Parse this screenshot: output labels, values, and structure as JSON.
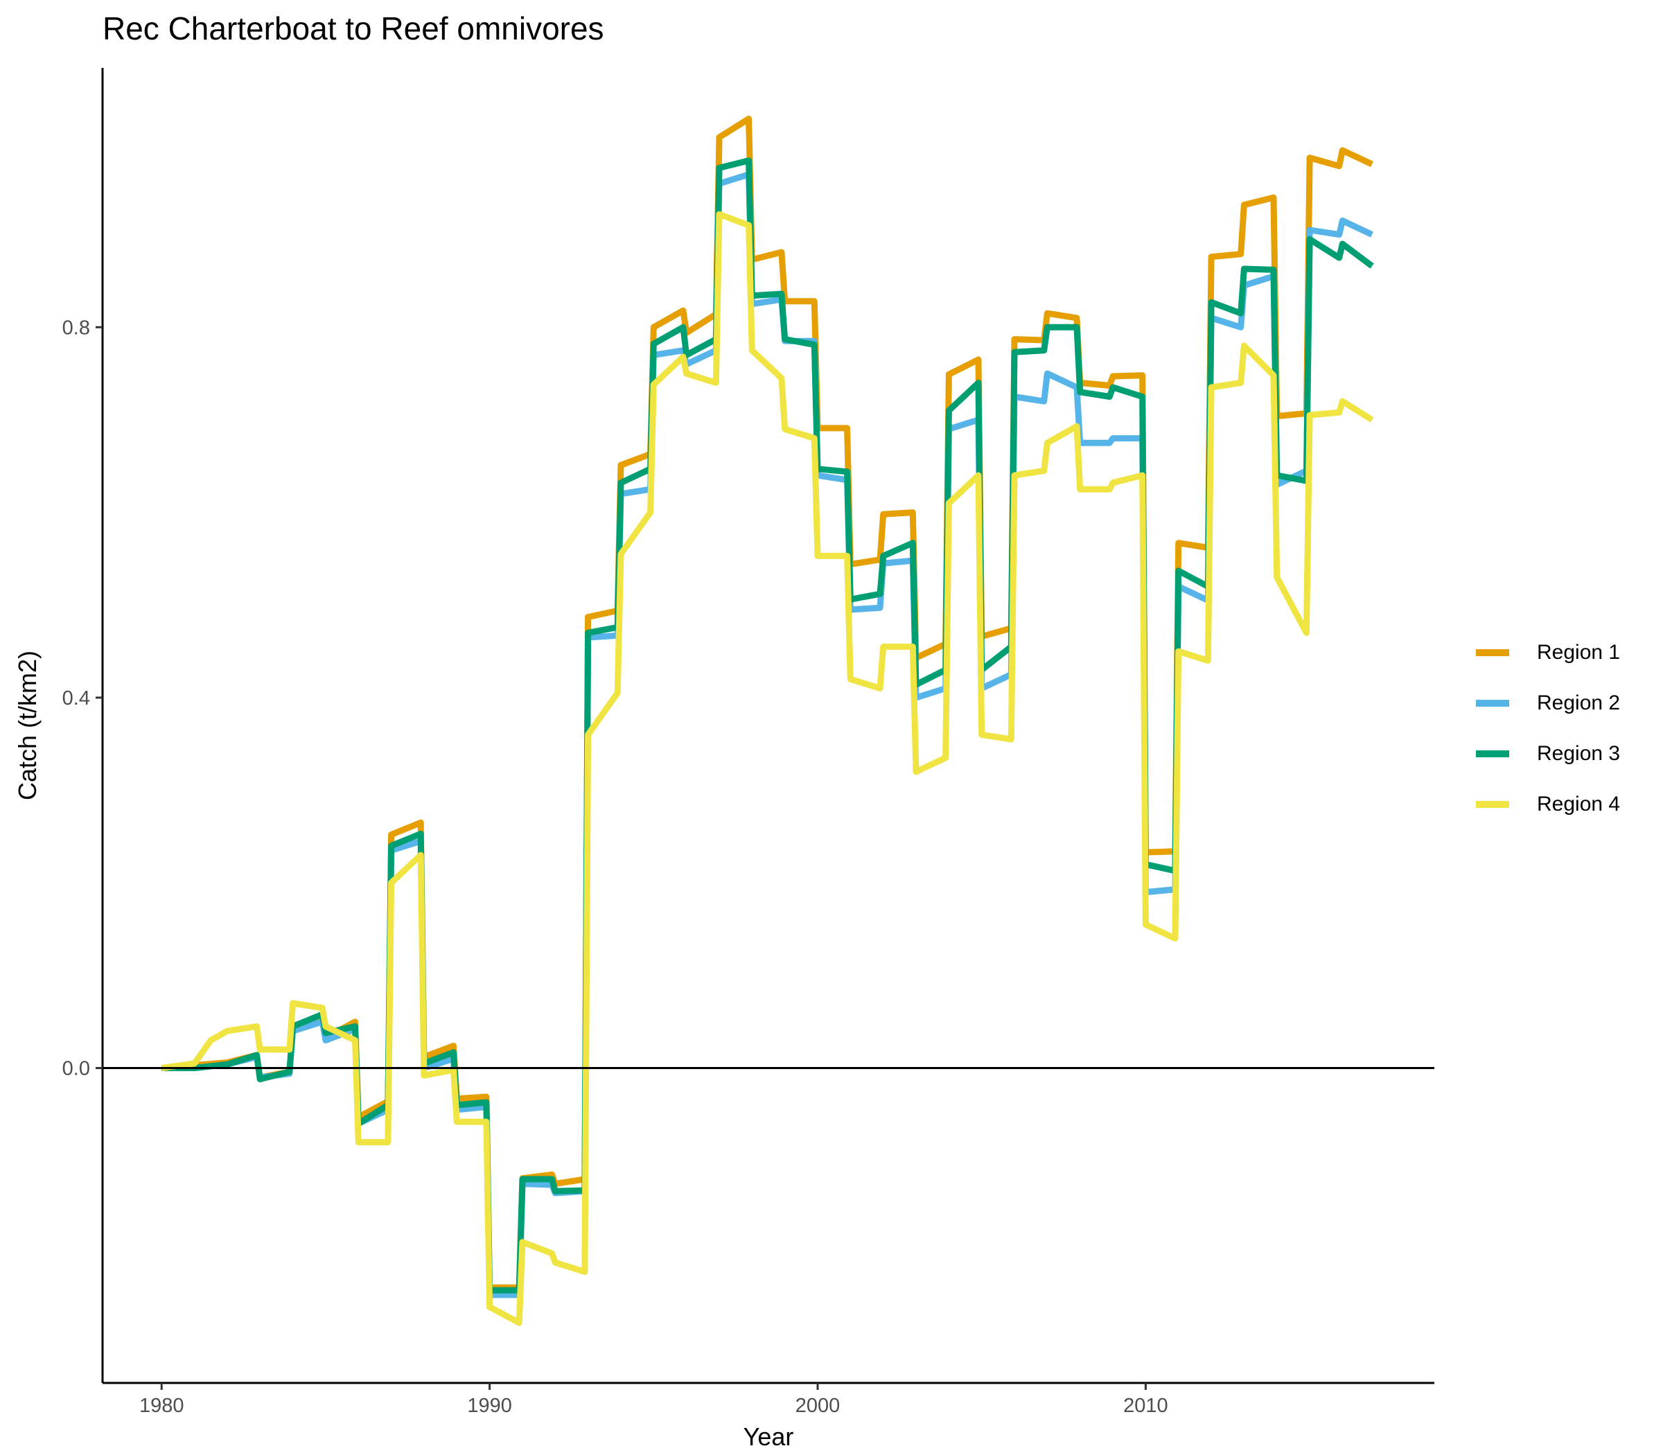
{
  "chart_data": {
    "type": "line",
    "title": "Rec Charterboat to Reef omnivores",
    "xlabel": "Year",
    "ylabel": "Catch (t/km2)",
    "xlim": [
      1978.2,
      2018.8
    ],
    "ylim": [
      -0.34,
      1.08
    ],
    "x_ticks": [
      1980,
      1990,
      2000,
      2010
    ],
    "x_tick_labels": [
      "1980",
      "1990",
      "2000",
      "2010"
    ],
    "y_ticks": [
      0.0,
      0.4,
      0.8
    ],
    "y_tick_labels": [
      "0.0",
      "0.4",
      "0.8"
    ],
    "zero_line": true,
    "grid": false,
    "legend_position": "right",
    "series": [
      {
        "name": "Region 1",
        "color": "#E69F00",
        "points": [
          [
            1980.0,
            0.0
          ],
          [
            1981.0,
            0.003
          ],
          [
            1982.0,
            0.006
          ],
          [
            1982.9,
            0.014
          ],
          [
            1983.0,
            -0.01
          ],
          [
            1983.9,
            -0.004
          ],
          [
            1984.0,
            0.043
          ],
          [
            1984.9,
            0.056
          ],
          [
            1985.0,
            0.033
          ],
          [
            1985.9,
            0.05
          ],
          [
            1986.0,
            -0.053
          ],
          [
            1986.9,
            -0.036
          ],
          [
            1987.0,
            0.252
          ],
          [
            1987.9,
            0.265
          ],
          [
            1988.0,
            0.012
          ],
          [
            1988.9,
            0.024
          ],
          [
            1989.0,
            -0.033
          ],
          [
            1989.9,
            -0.031
          ],
          [
            1990.0,
            -0.237
          ],
          [
            1990.9,
            -0.237
          ],
          [
            1991.0,
            -0.119
          ],
          [
            1991.9,
            -0.115
          ],
          [
            1992.0,
            -0.125
          ],
          [
            1992.9,
            -0.12
          ],
          [
            1993.0,
            0.487
          ],
          [
            1993.9,
            0.494
          ],
          [
            1994.0,
            0.651
          ],
          [
            1994.9,
            0.663
          ],
          [
            1995.0,
            0.8
          ],
          [
            1995.9,
            0.818
          ],
          [
            1996.0,
            0.794
          ],
          [
            1996.9,
            0.814
          ],
          [
            1997.0,
            1.005
          ],
          [
            1997.9,
            1.025
          ],
          [
            1998.0,
            0.873
          ],
          [
            1998.9,
            0.881
          ],
          [
            1999.0,
            0.828
          ],
          [
            1999.9,
            0.828
          ],
          [
            2000.0,
            0.691
          ],
          [
            2000.9,
            0.691
          ],
          [
            2001.0,
            0.544
          ],
          [
            2001.9,
            0.549
          ],
          [
            2002.0,
            0.598
          ],
          [
            2002.9,
            0.6
          ],
          [
            2003.0,
            0.443
          ],
          [
            2003.9,
            0.458
          ],
          [
            2004.0,
            0.749
          ],
          [
            2004.9,
            0.765
          ],
          [
            2005.0,
            0.466
          ],
          [
            2005.9,
            0.475
          ],
          [
            2006.0,
            0.787
          ],
          [
            2006.9,
            0.786
          ],
          [
            2007.0,
            0.815
          ],
          [
            2007.9,
            0.81
          ],
          [
            2008.0,
            0.74
          ],
          [
            2008.9,
            0.737
          ],
          [
            2009.0,
            0.747
          ],
          [
            2009.9,
            0.748
          ],
          [
            2010.0,
            0.233
          ],
          [
            2010.9,
            0.234
          ],
          [
            2011.0,
            0.567
          ],
          [
            2011.9,
            0.562
          ],
          [
            2012.0,
            0.876
          ],
          [
            2012.9,
            0.879
          ],
          [
            2013.0,
            0.932
          ],
          [
            2013.9,
            0.94
          ],
          [
            2014.0,
            0.704
          ],
          [
            2014.9,
            0.707
          ],
          [
            2015.0,
            0.983
          ],
          [
            2015.9,
            0.974
          ],
          [
            2016.0,
            0.991
          ],
          [
            2016.9,
            0.976
          ]
        ]
      },
      {
        "name": "Region 2",
        "color": "#56B4E9",
        "points": [
          [
            1980.0,
            0.0
          ],
          [
            1981.0,
            0.0
          ],
          [
            1982.0,
            0.004
          ],
          [
            1982.9,
            0.012
          ],
          [
            1983.0,
            -0.01
          ],
          [
            1983.9,
            -0.006
          ],
          [
            1984.0,
            0.04
          ],
          [
            1984.9,
            0.05
          ],
          [
            1985.0,
            0.03
          ],
          [
            1985.9,
            0.042
          ],
          [
            1986.0,
            -0.06
          ],
          [
            1986.9,
            -0.045
          ],
          [
            1987.0,
            0.235
          ],
          [
            1987.9,
            0.245
          ],
          [
            1988.0,
            0.0
          ],
          [
            1988.9,
            0.01
          ],
          [
            1989.0,
            -0.045
          ],
          [
            1989.9,
            -0.042
          ],
          [
            1990.0,
            -0.245
          ],
          [
            1990.9,
            -0.245
          ],
          [
            1991.0,
            -0.125
          ],
          [
            1991.9,
            -0.126
          ],
          [
            1992.0,
            -0.135
          ],
          [
            1992.9,
            -0.133
          ],
          [
            1993.0,
            0.465
          ],
          [
            1993.9,
            0.467
          ],
          [
            1994.0,
            0.62
          ],
          [
            1994.9,
            0.625
          ],
          [
            1995.0,
            0.77
          ],
          [
            1995.9,
            0.775
          ],
          [
            1996.0,
            0.76
          ],
          [
            1996.9,
            0.775
          ],
          [
            1997.0,
            0.955
          ],
          [
            1997.9,
            0.965
          ],
          [
            1998.0,
            0.825
          ],
          [
            1998.9,
            0.83
          ],
          [
            1999.0,
            0.785
          ],
          [
            1999.9,
            0.785
          ],
          [
            2000.0,
            0.64
          ],
          [
            2000.9,
            0.635
          ],
          [
            2001.0,
            0.495
          ],
          [
            2001.9,
            0.497
          ],
          [
            2002.0,
            0.545
          ],
          [
            2002.9,
            0.548
          ],
          [
            2003.0,
            0.4
          ],
          [
            2003.9,
            0.41
          ],
          [
            2004.0,
            0.69
          ],
          [
            2004.9,
            0.7
          ],
          [
            2005.0,
            0.41
          ],
          [
            2005.9,
            0.425
          ],
          [
            2006.0,
            0.725
          ],
          [
            2006.9,
            0.72
          ],
          [
            2007.0,
            0.75
          ],
          [
            2007.9,
            0.735
          ],
          [
            2008.0,
            0.675
          ],
          [
            2008.9,
            0.675
          ],
          [
            2009.0,
            0.68
          ],
          [
            2009.9,
            0.68
          ],
          [
            2010.0,
            0.19
          ],
          [
            2010.9,
            0.193
          ],
          [
            2011.0,
            0.52
          ],
          [
            2011.9,
            0.505
          ],
          [
            2012.0,
            0.81
          ],
          [
            2012.9,
            0.8
          ],
          [
            2013.0,
            0.845
          ],
          [
            2013.9,
            0.855
          ],
          [
            2014.0,
            0.63
          ],
          [
            2014.9,
            0.645
          ],
          [
            2015.0,
            0.905
          ],
          [
            2015.9,
            0.9
          ],
          [
            2016.0,
            0.915
          ],
          [
            2016.9,
            0.9
          ]
        ]
      },
      {
        "name": "Region 3",
        "color": "#009E73",
        "points": [
          [
            1980.0,
            0.0
          ],
          [
            1981.0,
            0.0
          ],
          [
            1982.0,
            0.004
          ],
          [
            1982.9,
            0.014
          ],
          [
            1983.0,
            -0.012
          ],
          [
            1983.9,
            -0.004
          ],
          [
            1984.0,
            0.045
          ],
          [
            1984.9,
            0.058
          ],
          [
            1985.0,
            0.038
          ],
          [
            1985.9,
            0.045
          ],
          [
            1986.0,
            -0.06
          ],
          [
            1986.9,
            -0.04
          ],
          [
            1987.0,
            0.24
          ],
          [
            1987.9,
            0.253
          ],
          [
            1988.0,
            0.005
          ],
          [
            1988.9,
            0.017
          ],
          [
            1989.0,
            -0.04
          ],
          [
            1989.9,
            -0.037
          ],
          [
            1990.0,
            -0.24
          ],
          [
            1990.9,
            -0.24
          ],
          [
            1991.0,
            -0.12
          ],
          [
            1991.9,
            -0.12
          ],
          [
            1992.0,
            -0.133
          ],
          [
            1992.9,
            -0.132
          ],
          [
            1993.0,
            0.47
          ],
          [
            1993.9,
            0.476
          ],
          [
            1994.0,
            0.632
          ],
          [
            1994.9,
            0.647
          ],
          [
            1995.0,
            0.782
          ],
          [
            1995.9,
            0.8
          ],
          [
            1996.0,
            0.77
          ],
          [
            1996.9,
            0.787
          ],
          [
            1997.0,
            0.972
          ],
          [
            1997.9,
            0.98
          ],
          [
            1998.0,
            0.834
          ],
          [
            1998.9,
            0.836
          ],
          [
            1999.0,
            0.787
          ],
          [
            1999.9,
            0.781
          ],
          [
            2000.0,
            0.647
          ],
          [
            2000.9,
            0.644
          ],
          [
            2001.0,
            0.506
          ],
          [
            2001.9,
            0.512
          ],
          [
            2002.0,
            0.553
          ],
          [
            2002.9,
            0.567
          ],
          [
            2003.0,
            0.414
          ],
          [
            2003.9,
            0.43
          ],
          [
            2004.0,
            0.71
          ],
          [
            2004.9,
            0.74
          ],
          [
            2005.0,
            0.43
          ],
          [
            2005.9,
            0.455
          ],
          [
            2006.0,
            0.773
          ],
          [
            2006.9,
            0.775
          ],
          [
            2007.0,
            0.8
          ],
          [
            2007.9,
            0.8
          ],
          [
            2008.0,
            0.73
          ],
          [
            2008.9,
            0.725
          ],
          [
            2009.0,
            0.735
          ],
          [
            2009.9,
            0.725
          ],
          [
            2010.0,
            0.22
          ],
          [
            2010.9,
            0.213
          ],
          [
            2011.0,
            0.537
          ],
          [
            2011.9,
            0.52
          ],
          [
            2012.0,
            0.827
          ],
          [
            2012.9,
            0.815
          ],
          [
            2013.0,
            0.863
          ],
          [
            2013.9,
            0.862
          ],
          [
            2014.0,
            0.64
          ],
          [
            2014.9,
            0.634
          ],
          [
            2015.0,
            0.895
          ],
          [
            2015.9,
            0.875
          ],
          [
            2016.0,
            0.89
          ],
          [
            2016.9,
            0.866
          ]
        ]
      },
      {
        "name": "Region 4",
        "color": "#F0E442",
        "points": [
          [
            1980.0,
            0.0
          ],
          [
            1981.0,
            0.005
          ],
          [
            1981.5,
            0.03
          ],
          [
            1982.0,
            0.04
          ],
          [
            1982.9,
            0.045
          ],
          [
            1983.0,
            0.02
          ],
          [
            1983.9,
            0.02
          ],
          [
            1984.0,
            0.07
          ],
          [
            1984.9,
            0.065
          ],
          [
            1985.0,
            0.045
          ],
          [
            1985.9,
            0.03
          ],
          [
            1986.0,
            -0.08
          ],
          [
            1986.9,
            -0.08
          ],
          [
            1987.0,
            0.2
          ],
          [
            1987.9,
            0.23
          ],
          [
            1988.0,
            -0.008
          ],
          [
            1988.9,
            -0.002
          ],
          [
            1989.0,
            -0.058
          ],
          [
            1989.9,
            -0.058
          ],
          [
            1990.0,
            -0.258
          ],
          [
            1990.9,
            -0.275
          ],
          [
            1991.0,
            -0.188
          ],
          [
            1991.9,
            -0.2
          ],
          [
            1992.0,
            -0.21
          ],
          [
            1992.9,
            -0.22
          ],
          [
            1993.0,
            0.36
          ],
          [
            1993.9,
            0.405
          ],
          [
            1994.0,
            0.555
          ],
          [
            1994.9,
            0.6
          ],
          [
            1995.0,
            0.738
          ],
          [
            1995.9,
            0.768
          ],
          [
            1996.0,
            0.75
          ],
          [
            1996.9,
            0.74
          ],
          [
            1997.0,
            0.922
          ],
          [
            1997.9,
            0.91
          ],
          [
            1998.0,
            0.775
          ],
          [
            1998.9,
            0.745
          ],
          [
            1999.0,
            0.69
          ],
          [
            1999.9,
            0.68
          ],
          [
            2000.0,
            0.553
          ],
          [
            2000.9,
            0.553
          ],
          [
            2001.0,
            0.42
          ],
          [
            2001.9,
            0.41
          ],
          [
            2002.0,
            0.455
          ],
          [
            2002.9,
            0.455
          ],
          [
            2003.0,
            0.32
          ],
          [
            2003.9,
            0.335
          ],
          [
            2004.0,
            0.61
          ],
          [
            2004.9,
            0.64
          ],
          [
            2005.0,
            0.36
          ],
          [
            2005.9,
            0.355
          ],
          [
            2006.0,
            0.64
          ],
          [
            2006.9,
            0.645
          ],
          [
            2007.0,
            0.675
          ],
          [
            2007.9,
            0.693
          ],
          [
            2008.0,
            0.625
          ],
          [
            2008.9,
            0.625
          ],
          [
            2009.0,
            0.632
          ],
          [
            2009.9,
            0.64
          ],
          [
            2010.0,
            0.155
          ],
          [
            2010.9,
            0.14
          ],
          [
            2011.0,
            0.45
          ],
          [
            2011.9,
            0.44
          ],
          [
            2012.0,
            0.735
          ],
          [
            2012.9,
            0.74
          ],
          [
            2013.0,
            0.78
          ],
          [
            2013.9,
            0.748
          ],
          [
            2014.0,
            0.53
          ],
          [
            2014.9,
            0.47
          ],
          [
            2015.0,
            0.705
          ],
          [
            2015.9,
            0.708
          ],
          [
            2016.0,
            0.72
          ],
          [
            2016.9,
            0.7
          ]
        ]
      }
    ]
  }
}
